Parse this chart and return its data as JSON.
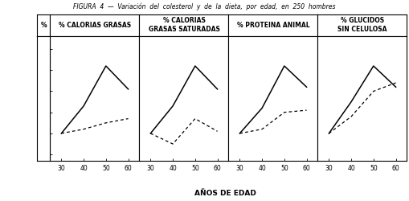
{
  "title": "FIGURA  4  —  Variación  del  colesterol  y  de  la  dieta,  por  edad,  en  250  hombres",
  "xlabel": "AÑOS DE EDAD",
  "ylabel": "%",
  "x_ticks": [
    30,
    40,
    50,
    60
  ],
  "panels": [
    {
      "title": "% CALORIAS GRASAS",
      "title_lines": [
        "% CALORIAS GRASAS"
      ],
      "solid": [
        0,
        13,
        32,
        21
      ],
      "dashed": [
        0,
        2,
        5,
        7
      ]
    },
    {
      "title": "% CALORIAS\nGRASAS SATURADAS",
      "title_lines": [
        "% CALORIAS",
        "GRASAS SATURADAS"
      ],
      "solid": [
        0,
        13,
        32,
        21
      ],
      "dashed": [
        0,
        -5,
        7,
        1
      ]
    },
    {
      "title": "% PROTEINA ANIMAL",
      "title_lines": [
        "% PROTEINA ANIMAL"
      ],
      "solid": [
        0,
        12,
        32,
        22
      ],
      "dashed": [
        0,
        2,
        10,
        11
      ]
    },
    {
      "title": "% GLUCIDOS\nSIN CELULOSA",
      "title_lines": [
        "% GLUCIDOS",
        "SIN CELULOSA"
      ],
      "solid": [
        0,
        15,
        32,
        22
      ],
      "dashed": [
        0,
        8,
        20,
        24
      ]
    }
  ],
  "ylim": [
    -13,
    46
  ],
  "yticks": [
    40,
    30,
    20,
    10,
    0,
    -10
  ],
  "line_color": "#000000",
  "bg_color": "#ffffff",
  "title_fontsize": 5.5,
  "panel_title_fontsize": 5.5,
  "tick_fontsize": 5.5,
  "xlabel_fontsize": 6.5
}
